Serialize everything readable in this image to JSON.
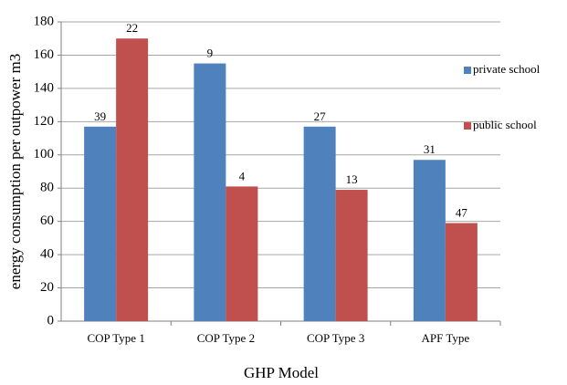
{
  "chart_data": {
    "type": "bar",
    "x_label": "GHP  Model",
    "y_label": "energy consumption per outpower m3",
    "categories": [
      "COP Type 1",
      "COP Type 2",
      "COP Type 3",
      "APF Type"
    ],
    "series": [
      {
        "name": "private school",
        "color": "#4f81bd",
        "values": [
          117,
          155,
          117,
          97
        ],
        "counts": [
          39,
          9,
          27,
          31
        ]
      },
      {
        "name": "public school",
        "color": "#c0504d",
        "values": [
          170,
          81,
          79,
          59
        ],
        "counts": [
          22,
          4,
          13,
          47
        ]
      }
    ],
    "ylim": [
      0,
      180
    ],
    "yticks": [
      0,
      20,
      40,
      60,
      80,
      100,
      120,
      140,
      160,
      180
    ],
    "grid": true
  }
}
